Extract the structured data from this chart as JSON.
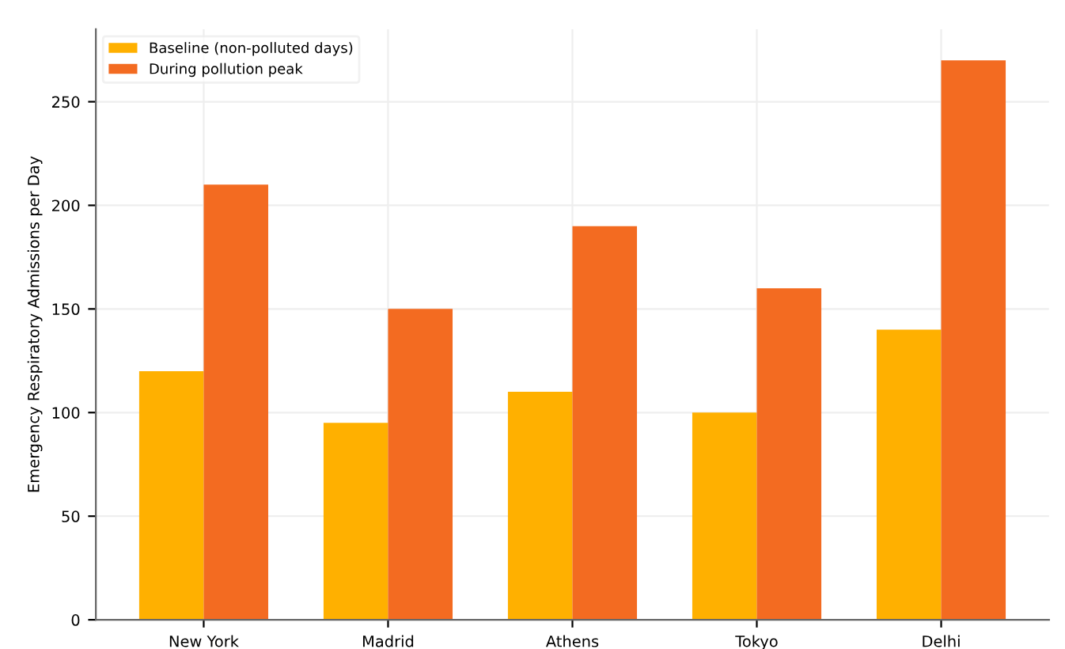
{
  "chart_data": {
    "type": "bar",
    "ylabel": "Emergency Respiratory Admissions per Day",
    "categories": [
      "New York",
      "Madrid",
      "Athens",
      "Tokyo",
      "Delhi"
    ],
    "series": [
      {
        "name": "Baseline (non-polluted days)",
        "color": "#ffb000",
        "values": [
          120,
          95,
          110,
          100,
          140
        ]
      },
      {
        "name": "During pollution peak",
        "color": "#f36b21",
        "values": [
          210,
          150,
          190,
          160,
          270
        ]
      }
    ],
    "ylim": [
      0,
      285
    ],
    "yticks": [
      0,
      50,
      100,
      150,
      200,
      250
    ],
    "grid": true,
    "legend": "top left"
  }
}
